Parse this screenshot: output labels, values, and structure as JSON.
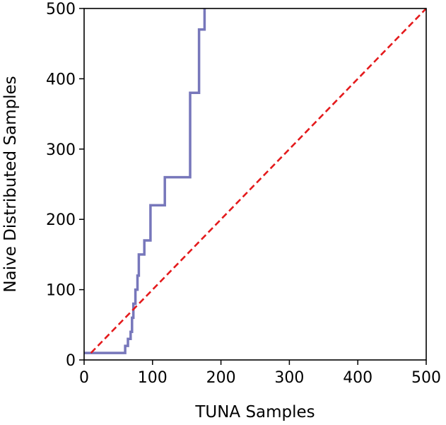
{
  "chart_data": {
    "type": "line",
    "xlabel": "TUNA Samples",
    "ylabel": "Naive Distributed Samples",
    "xlim": [
      0,
      500
    ],
    "ylim": [
      0,
      500
    ],
    "xticks": [
      0,
      100,
      200,
      300,
      400,
      500
    ],
    "yticks": [
      0,
      100,
      200,
      300,
      400,
      500
    ],
    "grid": false,
    "legend": "none",
    "series": [
      {
        "style": "solid",
        "color": "#7777bb",
        "x": [
          0,
          60,
          60,
          64,
          64,
          68,
          68,
          70,
          70,
          72,
          72,
          75,
          75,
          78,
          78,
          80,
          80,
          83,
          83,
          88,
          88,
          92,
          92,
          97,
          97,
          118,
          118,
          155,
          155,
          168,
          168,
          176,
          176,
          178
        ],
        "y": [
          10,
          10,
          20,
          20,
          30,
          30,
          40,
          40,
          60,
          60,
          80,
          80,
          100,
          100,
          120,
          120,
          150,
          150,
          150,
          150,
          170,
          170,
          170,
          170,
          220,
          220,
          260,
          260,
          380,
          380,
          470,
          470,
          500,
          500
        ]
      },
      {
        "style": "dashed",
        "color": "#e41a1c",
        "x": [
          10,
          500
        ],
        "y": [
          10,
          500
        ]
      }
    ]
  }
}
